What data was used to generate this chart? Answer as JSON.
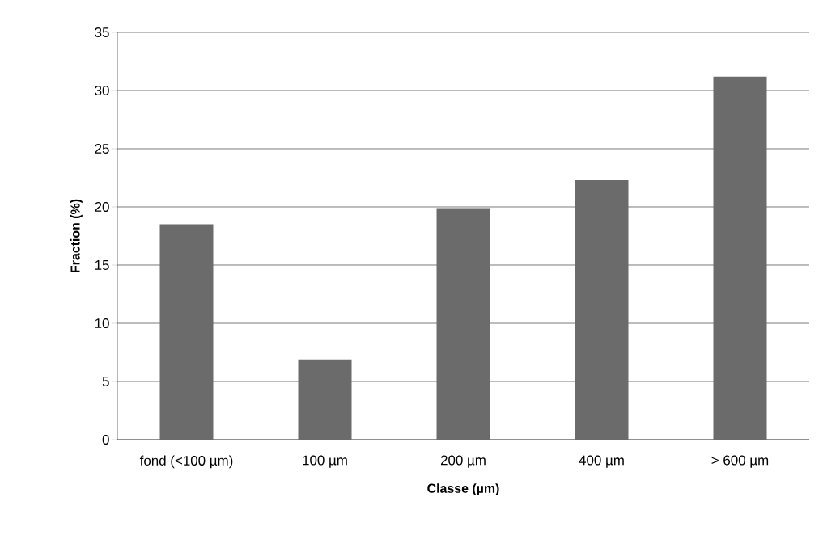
{
  "chart_data": {
    "type": "bar",
    "xlabel": "Classe (µm)",
    "ylabel": "Fraction (%)",
    "categories": [
      "fond (<100 µm)",
      "100 µm",
      "200 µm",
      "400 µm",
      "> 600 µm"
    ],
    "values": [
      18.5,
      6.9,
      19.9,
      22.3,
      31.2
    ],
    "color": "#6b6b6b",
    "ylim": [
      0,
      35
    ],
    "yticks": [
      0,
      5,
      10,
      15,
      20,
      25,
      30,
      35
    ],
    "grid": "y"
  }
}
